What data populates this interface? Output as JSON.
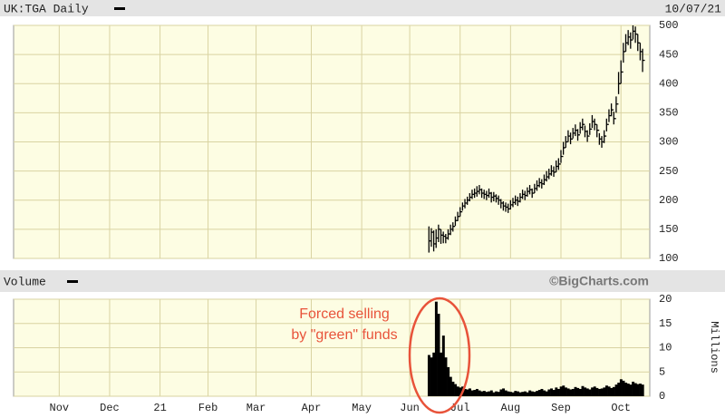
{
  "header": {
    "title": "UK:TGA Daily",
    "date": "10/07/21"
  },
  "chart_data": [
    {
      "type": "hlc",
      "x": [
        173,
        174,
        175,
        176,
        177,
        178,
        179,
        180,
        181,
        182,
        183,
        184,
        185,
        186,
        187,
        188,
        189,
        190,
        191,
        192,
        193,
        194,
        195,
        196,
        197,
        198,
        199,
        200,
        201,
        202,
        203,
        204,
        205,
        206,
        207,
        208,
        209,
        210,
        211,
        212,
        213,
        214,
        215,
        216,
        217,
        218,
        219,
        220,
        221,
        222,
        223,
        224,
        225,
        226,
        227,
        228,
        229,
        230,
        231,
        232,
        233,
        234,
        235,
        236,
        237,
        238,
        239,
        240,
        241,
        242,
        243,
        244,
        245,
        246,
        247,
        248,
        249,
        250,
        251,
        252,
        253,
        254,
        255,
        256,
        257,
        258,
        259,
        260,
        261,
        262
      ],
      "series": [
        {
          "color": "#000000",
          "high": [
            155,
            152,
            148,
            150,
            158,
            150,
            146,
            142,
            150,
            158,
            162,
            172,
            180,
            188,
            196,
            202,
            206,
            212,
            218,
            220,
            224,
            226,
            220,
            218,
            216,
            220,
            214,
            214,
            210,
            208,
            202,
            198,
            196,
            194,
            200,
            204,
            208,
            206,
            212,
            218,
            216,
            222,
            226,
            220,
            228,
            234,
            238,
            236,
            244,
            250,
            254,
            260,
            258,
            268,
            272,
            286,
            300,
            310,
            320,
            316,
            324,
            330,
            322,
            334,
            340,
            328,
            320,
            332,
            346,
            340,
            330,
            315,
            310,
            320,
            340,
            356,
            366,
            352,
            378,
            420,
            440,
            470,
            485,
            492,
            488,
            500,
            498,
            485,
            470,
            460
          ],
          "low": [
            110,
            120,
            112,
            118,
            128,
            125,
            126,
            126,
            132,
            140,
            146,
            156,
            164,
            172,
            182,
            186,
            192,
            198,
            202,
            204,
            206,
            210,
            204,
            202,
            200,
            204,
            196,
            198,
            196,
            192,
            186,
            182,
            180,
            178,
            184,
            188,
            192,
            190,
            196,
            202,
            200,
            206,
            210,
            204,
            212,
            216,
            222,
            220,
            226,
            232,
            236,
            242,
            240,
            248,
            252,
            264,
            278,
            290,
            300,
            296,
            306,
            310,
            302,
            314,
            320,
            308,
            300,
            312,
            324,
            320,
            308,
            295,
            290,
            298,
            318,
            334,
            344,
            330,
            350,
            382,
            400,
            436,
            455,
            466,
            460,
            476,
            470,
            456,
            440,
            420
          ],
          "close": [
            130,
            145,
            125,
            135,
            150,
            140,
            138,
            135,
            142,
            150,
            155,
            165,
            172,
            180,
            190,
            195,
            200,
            205,
            210,
            212,
            215,
            218,
            212,
            210,
            208,
            212,
            205,
            207,
            203,
            200,
            195,
            190,
            188,
            185,
            192,
            196,
            200,
            198,
            205,
            210,
            208,
            215,
            218,
            212,
            220,
            225,
            230,
            228,
            235,
            240,
            245,
            250,
            248,
            258,
            262,
            275,
            290,
            300,
            310,
            305,
            315,
            320,
            312,
            325,
            330,
            318,
            310,
            322,
            335,
            330,
            320,
            305,
            300,
            310,
            330,
            345,
            355,
            340,
            365,
            400,
            420,
            455,
            470,
            480,
            475,
            490,
            485,
            470,
            455,
            440
          ]
        }
      ],
      "xlim": [
        0,
        265
      ],
      "ylim": [
        100,
        500
      ],
      "yticks": [
        100,
        150,
        200,
        250,
        300,
        350,
        400,
        450,
        500
      ],
      "grid": true
    },
    {
      "type": "volume",
      "title": "Volume",
      "source": "©BigCharts.com",
      "y_label": "Millions",
      "annotations": [
        "Forced selling",
        "by \"green\" funds"
      ],
      "color": "#000000",
      "values": [
        8.5,
        8,
        9,
        19.5,
        17,
        9,
        12.5,
        8,
        6,
        4,
        3,
        2.5,
        2,
        1.8,
        2,
        1.5,
        1.4,
        1.6,
        1.2,
        1.3,
        1.5,
        1.2,
        1,
        1.1,
        0.9,
        1,
        1.2,
        0.8,
        1,
        0.9,
        1.4,
        1.6,
        1.2,
        1,
        0.9,
        0.8,
        1.1,
        1,
        0.8,
        0.9,
        1,
        0.8,
        1.2,
        1,
        0.9,
        1.1,
        1.3,
        1.5,
        1.2,
        1,
        1.4,
        1.6,
        1.3,
        1.8,
        1.5,
        2,
        2.2,
        1.8,
        1.6,
        1.4,
        1.5,
        1.9,
        1.7,
        1.5,
        2.1,
        1.8,
        1.6,
        1.4,
        1.8,
        2,
        1.7,
        1.5,
        1.6,
        1.8,
        2.2,
        2,
        1.7,
        1.9,
        2.4,
        2.8,
        3.5,
        3.2,
        2.8,
        2.6,
        2.4,
        3,
        2.7,
        2.5,
        2.6,
        2.4
      ],
      "xlim": [
        0,
        265
      ],
      "ylim": [
        0,
        20
      ],
      "yticks": [
        0,
        5,
        10,
        15,
        20
      ],
      "xticks": [
        {
          "value": 19,
          "label": "Nov"
        },
        {
          "value": 40,
          "label": "Dec"
        },
        {
          "value": 61,
          "label": "21"
        },
        {
          "value": 81,
          "label": "Feb"
        },
        {
          "value": 101,
          "label": "Mar"
        },
        {
          "value": 124,
          "label": "Apr"
        },
        {
          "value": 145,
          "label": "May"
        },
        {
          "value": 165,
          "label": "Jun"
        },
        {
          "value": 186,
          "label": "Jul"
        },
        {
          "value": 207,
          "label": "Aug"
        },
        {
          "value": 228,
          "label": "Sep"
        },
        {
          "value": 253,
          "label": "Oct"
        }
      ],
      "grid": true
    }
  ]
}
